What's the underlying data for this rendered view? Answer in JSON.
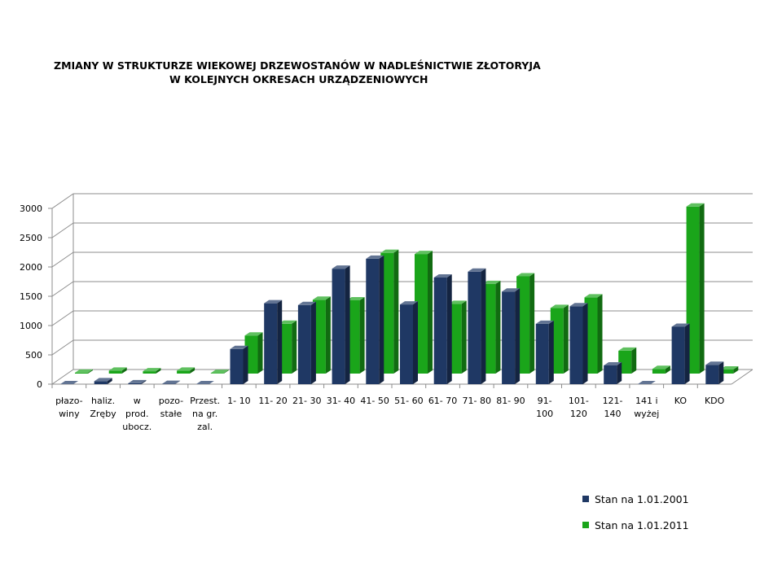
{
  "chart_data": {
    "type": "bar",
    "title": "ZMIANY W STRUKTURZE  WIEKOWEJ   DRZEWOSTANÓW W NADLEŚNICTWIE ZŁOTORYJA",
    "subtitle": "W KOLEJNYCH OKRESACH URZĄDZENIOWYCH",
    "xlabel": "",
    "ylabel": "",
    "ylim": [
      0,
      3000
    ],
    "yticks": [
      0,
      500,
      1000,
      1500,
      2000,
      2500,
      3000
    ],
    "grid": true,
    "legend_position": "bottom-right",
    "categories": [
      [
        "płazo-",
        "winy"
      ],
      [
        "haliz.",
        "Zręby"
      ],
      [
        "w",
        "prod.",
        "ubocz."
      ],
      [
        "pozo-",
        "stałe"
      ],
      [
        "Przest.",
        "na gr.",
        "zal."
      ],
      [
        "1- 10"
      ],
      [
        "11- 20"
      ],
      [
        "21- 30"
      ],
      [
        "31- 40"
      ],
      [
        "41- 50"
      ],
      [
        "51- 60"
      ],
      [
        "61- 70"
      ],
      [
        "71- 80"
      ],
      [
        "81- 90"
      ],
      [
        "91-",
        "100"
      ],
      [
        "101-",
        "120"
      ],
      [
        "121-",
        "140"
      ],
      [
        "141 i",
        "wyżej"
      ],
      [
        "KO"
      ],
      [
        "KDO"
      ]
    ],
    "series": [
      {
        "name": "Stan na 1.01.2001",
        "color": "#1f3864",
        "values": [
          0,
          50,
          15,
          5,
          0,
          600,
          1380,
          1350,
          1970,
          2140,
          1360,
          1820,
          1920,
          1580,
          1030,
          1330,
          320,
          0,
          980,
          330
        ]
      },
      {
        "name": "Stan na 1.01.2011",
        "color": "#1aa51a",
        "values": [
          15,
          50,
          40,
          50,
          10,
          650,
          850,
          1260,
          1250,
          2060,
          2040,
          1190,
          1530,
          1660,
          1120,
          1300,
          390,
          80,
          2850,
          70
        ]
      }
    ]
  }
}
